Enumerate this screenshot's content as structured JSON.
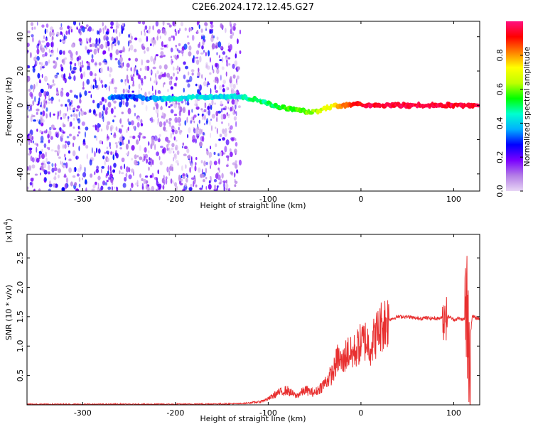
{
  "title": "C2E6.2024.172.12.45.G27",
  "chart_data": [
    {
      "type": "heatmap",
      "xlabel": "Height of straight line (km)",
      "ylabel": "Frequency (Hz)",
      "xlim": [
        -360,
        128
      ],
      "ylim": [
        -50,
        49
      ],
      "x_ticks": [
        -300,
        -200,
        -100,
        0,
        100
      ],
      "y_ticks": [
        -40,
        -20,
        0,
        20,
        40
      ],
      "colorbar": {
        "label": "Normalized spectral amplitude",
        "range": [
          0,
          1
        ],
        "ticks": [
          0.0,
          0.2,
          0.4,
          0.6,
          0.8
        ],
        "colors": [
          "#e8d6f5",
          "#b47ee6",
          "#7a00ff",
          "#0000ff",
          "#00b0ff",
          "#00ffd0",
          "#00ff00",
          "#c0ff00",
          "#ffff00",
          "#ff8000",
          "#ff0000",
          "#ff1080"
        ]
      },
      "noise_region_x": [
        -360,
        -130
      ],
      "ridge": [
        {
          "x": -270,
          "f": 5,
          "amp": 0.35
        },
        {
          "x": -250,
          "f": 5,
          "amp": 0.3
        },
        {
          "x": -220,
          "f": 4,
          "amp": 0.35
        },
        {
          "x": -205,
          "f": 4,
          "amp": 0.45
        },
        {
          "x": -150,
          "f": 5,
          "amp": 0.4
        },
        {
          "x": -130,
          "f": 5,
          "amp": 0.45
        },
        {
          "x": -110,
          "f": 3,
          "amp": 0.5
        },
        {
          "x": -95,
          "f": 0,
          "amp": 0.5
        },
        {
          "x": -80,
          "f": -2,
          "amp": 0.55
        },
        {
          "x": -65,
          "f": -3,
          "amp": 0.6
        },
        {
          "x": -55,
          "f": -4,
          "amp": 0.6
        },
        {
          "x": -45,
          "f": -3,
          "amp": 0.65
        },
        {
          "x": -35,
          "f": -1,
          "amp": 0.7
        },
        {
          "x": -20,
          "f": 0,
          "amp": 0.8
        },
        {
          "x": -5,
          "f": 1,
          "amp": 0.9
        },
        {
          "x": 10,
          "f": 0,
          "amp": 0.95
        },
        {
          "x": 40,
          "f": 0,
          "amp": 0.95
        },
        {
          "x": 80,
          "f": 0,
          "amp": 0.95
        },
        {
          "x": 110,
          "f": 0,
          "amp": 0.95
        },
        {
          "x": 128,
          "f": 0,
          "amp": 0.95
        }
      ]
    },
    {
      "type": "line",
      "xlabel": "Height of straight line (km)",
      "ylabel": "SNR (10 * v/v)",
      "y_multiplier": "(x10",
      "y_multiplier_exp": "4",
      "y_multiplier_close": ")",
      "xlim": [
        -360,
        128
      ],
      "ylim": [
        0,
        2.9
      ],
      "x_ticks": [
        -300,
        -200,
        -100,
        0,
        100
      ],
      "y_ticks": [
        0.5,
        1.0,
        1.5,
        2.0,
        2.5
      ],
      "y_tick_labels": [
        "0.5",
        "1.0",
        "1.5",
        "2.0",
        "2.5"
      ],
      "color": "#e83030",
      "series": [
        {
          "x": [
            -360,
            -300,
            -200,
            -130,
            -110,
            -100,
            -90,
            -80,
            -70,
            -60,
            -50,
            -40,
            -30,
            -25,
            -20,
            -15,
            -10,
            -5,
            0,
            5,
            10,
            15,
            20,
            25,
            30,
            40,
            50,
            60,
            70,
            80,
            90,
            95,
            100,
            105,
            110,
            115,
            118,
            120,
            128
          ],
          "y": [
            0.01,
            0.01,
            0.01,
            0.02,
            0.05,
            0.1,
            0.2,
            0.25,
            0.15,
            0.25,
            0.2,
            0.35,
            0.55,
            0.8,
            0.7,
            0.9,
            0.85,
            0.95,
            1.05,
            1.1,
            1.0,
            1.15,
            1.3,
            1.4,
            1.45,
            1.5,
            1.5,
            1.47,
            1.48,
            1.47,
            1.48,
            1.5,
            1.45,
            1.47,
            1.45,
            1.5,
            1.2,
            1.5,
            1.46
          ]
        }
      ]
    }
  ]
}
